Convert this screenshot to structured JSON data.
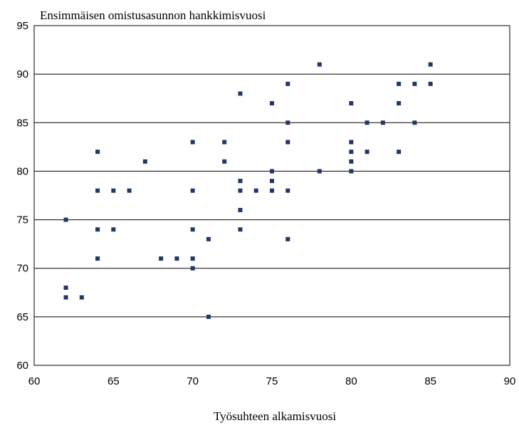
{
  "chart_data": {
    "type": "scatter",
    "title": "",
    "ylabel": "Ensimmäisen omistusasunnon hankkimisvuosi",
    "xlabel": "Työsuhteen alkamisvuosi",
    "xlim": [
      60,
      90
    ],
    "ylim": [
      60,
      95
    ],
    "xticks": [
      60,
      65,
      70,
      75,
      80,
      85,
      90
    ],
    "yticks": [
      60,
      65,
      70,
      75,
      80,
      85,
      90,
      95
    ],
    "grid": "horizontal",
    "marker_color": "#1f3864",
    "points": [
      [
        62,
        75
      ],
      [
        62,
        68
      ],
      [
        62,
        67
      ],
      [
        63,
        67
      ],
      [
        64,
        82
      ],
      [
        64,
        78
      ],
      [
        64,
        74
      ],
      [
        64,
        71
      ],
      [
        65,
        78
      ],
      [
        65,
        74
      ],
      [
        66,
        78
      ],
      [
        67,
        81
      ],
      [
        68,
        71
      ],
      [
        69,
        71
      ],
      [
        70,
        83
      ],
      [
        70,
        78
      ],
      [
        70,
        74
      ],
      [
        70,
        71
      ],
      [
        70,
        70
      ],
      [
        71,
        73
      ],
      [
        71,
        65
      ],
      [
        72,
        83
      ],
      [
        72,
        81
      ],
      [
        73,
        88
      ],
      [
        73,
        79
      ],
      [
        73,
        78
      ],
      [
        73,
        76
      ],
      [
        73,
        74
      ],
      [
        74,
        78
      ],
      [
        75,
        87
      ],
      [
        75,
        80
      ],
      [
        75,
        79
      ],
      [
        75,
        78
      ],
      [
        76,
        89
      ],
      [
        76,
        85
      ],
      [
        76,
        83
      ],
      [
        76,
        78
      ],
      [
        76,
        73
      ],
      [
        78,
        91
      ],
      [
        78,
        80
      ],
      [
        80,
        87
      ],
      [
        80,
        83
      ],
      [
        80,
        82
      ],
      [
        80,
        81
      ],
      [
        80,
        80
      ],
      [
        81,
        85
      ],
      [
        81,
        82
      ],
      [
        82,
        85
      ],
      [
        83,
        89
      ],
      [
        83,
        87
      ],
      [
        83,
        82
      ],
      [
        84,
        89
      ],
      [
        84,
        85
      ],
      [
        85,
        91
      ],
      [
        85,
        89
      ]
    ]
  }
}
